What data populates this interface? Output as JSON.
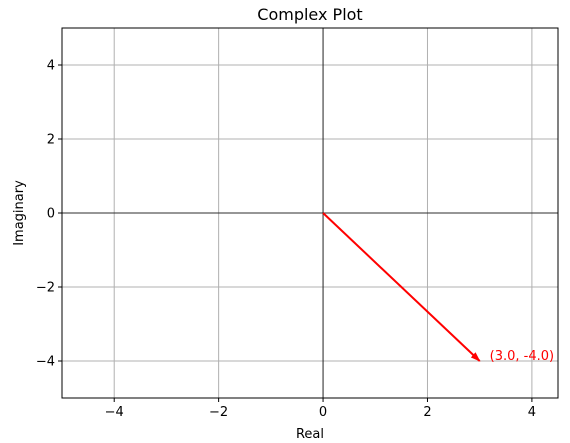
{
  "chart_data": {
    "type": "line",
    "title": "Complex Plot",
    "xlabel": "Real",
    "ylabel": "Imaginary",
    "xlim": [
      -5,
      4.5
    ],
    "ylim": [
      -5,
      5
    ],
    "x_ticks": [
      -4,
      -2,
      0,
      2,
      4
    ],
    "y_ticks": [
      -4,
      -2,
      0,
      2,
      4
    ],
    "x_tick_labels": [
      "−4",
      "−2",
      "0",
      "2",
      "4"
    ],
    "y_tick_labels": [
      "−4",
      "−2",
      "0",
      "2",
      "4"
    ],
    "grid": true,
    "origin_axes": true,
    "vectors": [
      {
        "from": [
          0,
          0
        ],
        "to": [
          3.0,
          -4.0
        ],
        "color": "#ff0000",
        "label": "(3.0, -4.0)"
      }
    ],
    "colors": {
      "grid": "#b0b0b0",
      "axis": "#000000",
      "vector": "#ff0000"
    }
  }
}
